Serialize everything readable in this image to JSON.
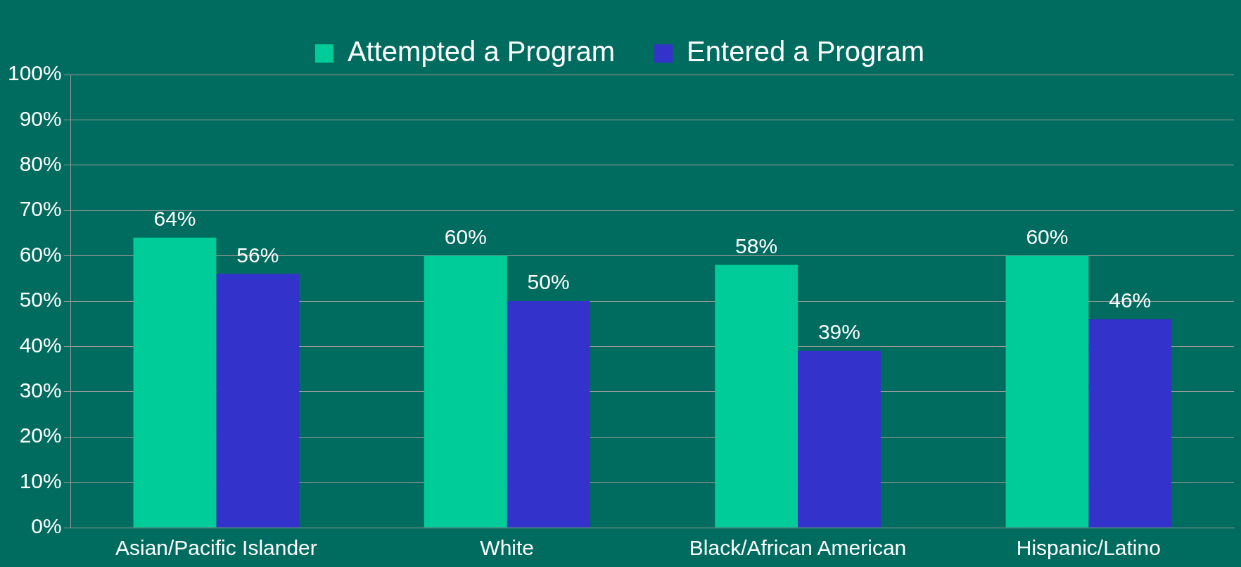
{
  "chart_data": {
    "type": "bar",
    "categories": [
      "Asian/Pacific Islander",
      "White",
      "Black/African American",
      "Hispanic/Latino"
    ],
    "series": [
      {
        "name": "Attempted a Program",
        "color": "#00cc99",
        "values": [
          64,
          60,
          58,
          60
        ]
      },
      {
        "name": "Entered a Program",
        "color": "#3333cc",
        "values": [
          56,
          50,
          39,
          46
        ]
      }
    ],
    "ylim": [
      0,
      100
    ],
    "yticks": [
      {
        "value": 0,
        "label": "0%"
      },
      {
        "value": 10,
        "label": "10%"
      },
      {
        "value": 20,
        "label": "20%"
      },
      {
        "value": 30,
        "label": "30%"
      },
      {
        "value": 40,
        "label": "40%"
      },
      {
        "value": 50,
        "label": "50%"
      },
      {
        "value": 60,
        "label": "60%"
      },
      {
        "value": 70,
        "label": "70%"
      },
      {
        "value": 80,
        "label": "80%"
      },
      {
        "value": 90,
        "label": "90%"
      },
      {
        "value": 100,
        "label": "100%"
      }
    ],
    "value_labels": [
      [
        "64%",
        "60%",
        "58%",
        "60%"
      ],
      [
        "56%",
        "50%",
        "39%",
        "46%"
      ]
    ],
    "grid": "y",
    "legend": "top"
  }
}
